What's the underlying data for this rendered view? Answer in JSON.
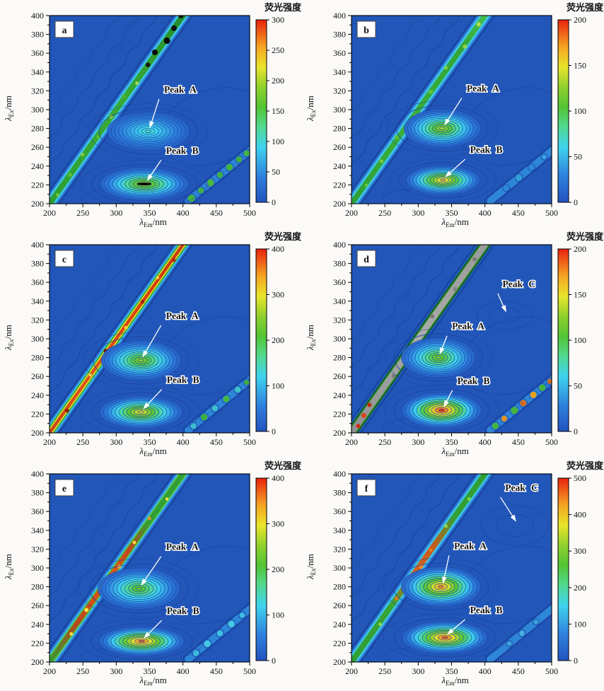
{
  "figure_title": "",
  "colorbar_title": "荧光强度",
  "axis": {
    "x_label_lambda": "λ",
    "x_label_sub": "Em",
    "x_label_unit": "/nm",
    "y_label_lambda": "λ",
    "y_label_sub": "Ex",
    "y_label_unit": "/nm",
    "x_min": 200,
    "x_max": 500,
    "y_min": 200,
    "y_max": 400,
    "x_major": [
      200,
      250,
      300,
      350,
      400,
      450,
      500
    ],
    "y_major": [
      200,
      220,
      240,
      260,
      280,
      300,
      320,
      340,
      360,
      380,
      400
    ],
    "grid": false
  },
  "colormap": [
    [
      0,
      "#2353bf"
    ],
    [
      0.14,
      "#2e7fdd"
    ],
    [
      0.3,
      "#3fd2ef"
    ],
    [
      0.42,
      "#52d98b"
    ],
    [
      0.52,
      "#52c434"
    ],
    [
      0.63,
      "#8fd02e"
    ],
    [
      0.74,
      "#e8e52b"
    ],
    [
      0.85,
      "#f5a623"
    ],
    [
      1,
      "#e8220e"
    ]
  ],
  "background_color": "#2256b8",
  "contour_line_color": "#17449e",
  "chart_data": [
    {
      "type": "heatmap",
      "panel": "a",
      "colorbar": {
        "max": 300,
        "ticks": [
          0,
          50,
          100,
          150,
          200,
          250,
          300
        ]
      },
      "rayleigh_band": {
        "layers": [
          [
            "#1a47a5",
            24
          ],
          [
            "#2d7fd9",
            18
          ],
          [
            "#3ec7e8",
            13
          ],
          [
            "GRAD",
            8
          ]
        ],
        "gradient": [
          [
            0,
            "#2f9e33"
          ],
          [
            0.5,
            "#39ab35"
          ],
          [
            0.75,
            "#2f9e33"
          ],
          [
            1,
            "#1f8c2a"
          ]
        ],
        "dots": [
          [
            0.05,
            "#6cc23c",
            2.5
          ],
          [
            0.15,
            "#59bd3a",
            3
          ],
          [
            0.25,
            "#7fd042",
            2.5
          ],
          [
            0.35,
            "#5abc38",
            3
          ],
          [
            0.45,
            "#8ed44a",
            2.5
          ],
          [
            0.55,
            "#4ab436",
            3
          ],
          [
            0.63,
            "#a8d84e",
            2.5
          ],
          [
            0.72,
            "#151515",
            3.2
          ],
          [
            0.78,
            "#0b0b0b",
            4
          ],
          [
            0.85,
            "#0b0b0b",
            4.5
          ],
          [
            0.91,
            "#101010",
            4
          ],
          [
            0.97,
            "#0b0b0b",
            3.5
          ]
        ]
      },
      "second_order_blobs": [
        [
          0.05,
          "#44b43c",
          5
        ],
        [
          0.2,
          "#3fae3a",
          4
        ],
        [
          0.35,
          "#49b83e",
          5
        ],
        [
          0.5,
          "#3fae3a",
          4
        ],
        [
          0.65,
          "#44b43c",
          4.5
        ],
        [
          0.8,
          "#3fae3a",
          4
        ],
        [
          0.92,
          "#44b43c",
          4
        ]
      ],
      "peaks": [
        {
          "label": "Peak A",
          "em": 348,
          "ex": 277,
          "value": 110,
          "rx": 58,
          "ry": 27,
          "label_em": 396,
          "label_ex": 318,
          "tip_em": 350,
          "tip_ex": 280
        },
        {
          "label": "Peak B",
          "em": 342,
          "ex": 221,
          "value": 205,
          "rx": 62,
          "ry": 23,
          "label_em": 399,
          "label_ex": 253,
          "tip_em": 346,
          "tip_ex": 224,
          "dark_core": true
        }
      ],
      "faint_peaks": []
    },
    {
      "type": "heatmap",
      "panel": "b",
      "colorbar": {
        "max": 200,
        "ticks": [
          0,
          50,
          100,
          150,
          200
        ]
      },
      "rayleigh_band": {
        "layers": [
          [
            "#1a47a5",
            24
          ],
          [
            "#2d7fd9",
            18
          ],
          [
            "#3ec7e8",
            13
          ],
          [
            "GRAD",
            7.5
          ]
        ],
        "gradient": [
          [
            0,
            "#2f9e33"
          ],
          [
            0.4,
            "#3bb03a"
          ],
          [
            0.8,
            "#34a438"
          ],
          [
            1,
            "#46c24e"
          ]
        ],
        "dots": [
          [
            0.1,
            "#63c53e",
            2.5
          ],
          [
            0.22,
            "#7fd046",
            2.5
          ],
          [
            0.34,
            "#59bd3a",
            3
          ],
          [
            0.46,
            "#8ed44a",
            2.5
          ],
          [
            0.58,
            "#63c53e",
            3
          ],
          [
            0.7,
            "#7fd046",
            2.5
          ],
          [
            0.82,
            "#8ed44a",
            3
          ],
          [
            0.93,
            "#b8e04e",
            3
          ]
        ]
      },
      "second_order_blobs": [
        [
          0.25,
          "#2f86d8",
          3.5
        ],
        [
          0.45,
          "#35a0d8",
          4
        ],
        [
          0.65,
          "#2f86d8",
          3.5
        ],
        [
          0.85,
          "#35a0d8",
          3
        ]
      ],
      "peaks": [
        {
          "label": "Peak A",
          "em": 336,
          "ex": 280,
          "value": 132,
          "rx": 54,
          "ry": 27,
          "label_em": 397,
          "label_ex": 319,
          "tip_em": 339,
          "tip_ex": 283
        },
        {
          "label": "Peak B",
          "em": 337,
          "ex": 225,
          "value": 165,
          "rx": 52,
          "ry": 21,
          "label_em": 402,
          "label_ex": 254,
          "tip_em": 340,
          "tip_ex": 228
        }
      ],
      "faint_peaks": []
    },
    {
      "type": "heatmap",
      "panel": "c",
      "colorbar": {
        "max": 400,
        "ticks": [
          0,
          100,
          200,
          300,
          400
        ]
      },
      "rayleigh_band": {
        "layers": [
          [
            "#1a47a5",
            24
          ],
          [
            "#2d7fd9",
            18
          ],
          [
            "#3ec7e8",
            14
          ],
          [
            "#3aa435",
            11
          ],
          [
            "#e8e52b",
            7.5
          ],
          [
            "GRAD",
            4.5
          ]
        ],
        "gradient": [
          [
            0,
            "#c8421c"
          ],
          [
            0.3,
            "#e05418"
          ],
          [
            0.6,
            "#d8430f"
          ],
          [
            1,
            "#c63a10"
          ]
        ],
        "dots": [
          [
            0.12,
            "#8f1f0e",
            2.8
          ],
          [
            0.3,
            "#ffe13a",
            2.2
          ],
          [
            0.42,
            "#7a1408",
            3
          ],
          [
            0.55,
            "#ffd83a",
            2.4
          ],
          [
            0.68,
            "#9c230f",
            2.8
          ],
          [
            0.8,
            "#ffd83a",
            2.2
          ],
          [
            0.9,
            "#b02a10",
            2.6
          ]
        ]
      },
      "second_order_blobs": [
        [
          0.08,
          "#3fc0c8",
          4
        ],
        [
          0.25,
          "#3fae3a",
          4.5
        ],
        [
          0.42,
          "#3fc0c8",
          4
        ],
        [
          0.6,
          "#44b43c",
          4.5
        ],
        [
          0.78,
          "#3fc0c8",
          4
        ],
        [
          0.92,
          "#3fae3a",
          3.5
        ]
      ],
      "peaks": [
        {
          "label": "Peak A",
          "em": 337,
          "ex": 277,
          "value": 252,
          "rx": 56,
          "ry": 28,
          "label_em": 399,
          "label_ex": 321,
          "tip_em": 339,
          "tip_ex": 280
        },
        {
          "label": "Peak B",
          "em": 337,
          "ex": 222,
          "value": 308,
          "rx": 58,
          "ry": 23,
          "label_em": 400,
          "label_ex": 253,
          "tip_em": 340,
          "tip_ex": 225
        }
      ],
      "faint_peaks": []
    },
    {
      "type": "heatmap",
      "panel": "d",
      "colorbar": {
        "max": 200,
        "ticks": [
          0,
          50,
          100,
          150,
          200
        ]
      },
      "rayleigh_band": {
        "layers": [
          [
            "#1a47a5",
            24
          ],
          [
            "#2d7fd9",
            17
          ],
          [
            "#0c4a22",
            15
          ],
          [
            "#2f8f2f",
            12
          ],
          [
            "GRAD",
            8.5
          ]
        ],
        "gradient": [
          [
            0,
            "#8f8f8f"
          ],
          [
            0.5,
            "#ababab"
          ],
          [
            1,
            "#9a9a9a"
          ]
        ],
        "dots": [
          [
            0.04,
            "#cf2b12",
            3
          ],
          [
            0.09,
            "#e0401a",
            3.5
          ],
          [
            0.14,
            "#c22810",
            3
          ],
          [
            0.3,
            "#7a7a7a",
            3
          ],
          [
            0.45,
            "#808080",
            3.2
          ],
          [
            0.6,
            "#7a7a7a",
            3
          ],
          [
            0.75,
            "#848484",
            3.2
          ],
          [
            0.9,
            "#7a7a7a",
            3
          ]
        ]
      },
      "second_order_blobs": [
        [
          0.08,
          "#44b43c",
          4.5
        ],
        [
          0.22,
          "#e8901f",
          4
        ],
        [
          0.38,
          "#44b43c",
          5
        ],
        [
          0.52,
          "#d2691e",
          4.5
        ],
        [
          0.68,
          "#e8a01f",
          4.5
        ],
        [
          0.82,
          "#44b43c",
          4.5
        ],
        [
          0.94,
          "#d2691e",
          3.5
        ]
      ],
      "peaks": [
        {
          "label": "Peak A",
          "em": 330,
          "ex": 280,
          "value": 122,
          "rx": 52,
          "ry": 28,
          "label_em": 375,
          "label_ex": 310,
          "tip_em": 332,
          "tip_ex": 283
        },
        {
          "label": "Peak B",
          "em": 335,
          "ex": 224,
          "value": 200,
          "rx": 56,
          "ry": 25,
          "label_em": 383,
          "label_ex": 252,
          "tip_em": 338,
          "tip_ex": 227
        }
      ],
      "faint_peaks": [
        {
          "label": "Peak C",
          "em": 430,
          "ex": 325,
          "rx": 40,
          "ry": 20,
          "label_em": 451,
          "label_ex": 355,
          "tip_em": 432,
          "tip_ex": 328
        }
      ]
    },
    {
      "type": "heatmap",
      "panel": "e",
      "colorbar": {
        "max": 400,
        "ticks": [
          0,
          100,
          200,
          300,
          400
        ]
      },
      "rayleigh_band": {
        "layers": [
          [
            "#1a47a5",
            24
          ],
          [
            "#2d7fd9",
            18
          ],
          [
            "#3ec7e8",
            13
          ],
          [
            "#58b838",
            10
          ],
          [
            "GRAD",
            6.5
          ]
        ],
        "gradient": [
          [
            0,
            "#2f9e33"
          ],
          [
            0.2,
            "#b8451f"
          ],
          [
            0.33,
            "#d84f17"
          ],
          [
            0.45,
            "#e25a14"
          ],
          [
            0.58,
            "#c44420"
          ],
          [
            0.72,
            "#2f9e33"
          ],
          [
            1,
            "#2f9e33"
          ]
        ],
        "dots": [
          [
            0.15,
            "#ffd83a",
            2.5
          ],
          [
            0.27,
            "#ffe34a",
            3
          ],
          [
            0.38,
            "#ffd83a",
            2.5
          ],
          [
            0.5,
            "#f0a83a",
            2.8
          ],
          [
            0.62,
            "#ffd83a",
            2.5
          ],
          [
            0.74,
            "#e2902a",
            2.5
          ],
          [
            0.85,
            "#ffe34a",
            2.3
          ]
        ]
      },
      "second_order_blobs": [
        [
          0.12,
          "#3fc0e0",
          4
        ],
        [
          0.3,
          "#46c8e2",
          4.5
        ],
        [
          0.5,
          "#3fc0e0",
          4
        ],
        [
          0.68,
          "#46c8e2",
          4.5
        ],
        [
          0.85,
          "#3fc0e0",
          3.5
        ]
      ],
      "peaks": [
        {
          "label": "Peak A",
          "em": 334,
          "ex": 278,
          "value": 228,
          "rx": 58,
          "ry": 29,
          "label_em": 399,
          "label_ex": 319,
          "tip_em": 337,
          "tip_ex": 281
        },
        {
          "label": "Peak B",
          "em": 338,
          "ex": 222,
          "value": 378,
          "rx": 60,
          "ry": 21,
          "label_em": 400,
          "label_ex": 251,
          "tip_em": 341,
          "tip_ex": 225
        }
      ],
      "faint_peaks": []
    },
    {
      "type": "heatmap",
      "panel": "f",
      "colorbar": {
        "max": 500,
        "ticks": [
          0,
          100,
          200,
          300,
          400,
          500
        ]
      },
      "rayleigh_band": {
        "layers": [
          [
            "#1a47a5",
            24
          ],
          [
            "#2d7fd9",
            18
          ],
          [
            "#3ec7e8",
            13
          ],
          [
            "GRAD",
            8
          ]
        ],
        "gradient": [
          [
            0,
            "#2f9e33"
          ],
          [
            0.3,
            "#3aa435"
          ],
          [
            0.45,
            "#d8641f"
          ],
          [
            0.6,
            "#c85a1c"
          ],
          [
            0.75,
            "#35a035"
          ],
          [
            1,
            "#2f9e33"
          ]
        ],
        "dots": [
          [
            0.2,
            "#8ed44a",
            2.5
          ],
          [
            0.33,
            "#e8781f",
            2.6
          ],
          [
            0.42,
            "#ffc83a",
            2.2
          ],
          [
            0.5,
            "#f08828",
            3
          ],
          [
            0.58,
            "#e8781f",
            2.6
          ],
          [
            0.7,
            "#8ed44a",
            2.5
          ],
          [
            0.85,
            "#7fd046",
            2.5
          ]
        ]
      },
      "second_order_blobs": [
        [
          0.3,
          "#3f9fd8",
          3
        ],
        [
          0.5,
          "#46b0e0",
          3.5
        ],
        [
          0.72,
          "#3f9fd8",
          3
        ]
      ],
      "peaks": [
        {
          "label": "Peak A",
          "em": 334,
          "ex": 280,
          "value": 448,
          "rx": 56,
          "ry": 28,
          "label_em": 378,
          "label_ex": 320,
          "tip_em": 337,
          "tip_ex": 283
        },
        {
          "label": "Peak B",
          "em": 340,
          "ex": 226,
          "value": 478,
          "rx": 60,
          "ry": 23,
          "label_em": 402,
          "label_ex": 252,
          "tip_em": 343,
          "tip_ex": 229
        }
      ],
      "faint_peaks": [
        {
          "label": "Peak C",
          "em": 445,
          "ex": 345,
          "rx": 48,
          "ry": 28,
          "label_em": 455,
          "label_ex": 382,
          "tip_em": 447,
          "tip_ex": 349
        }
      ]
    }
  ]
}
